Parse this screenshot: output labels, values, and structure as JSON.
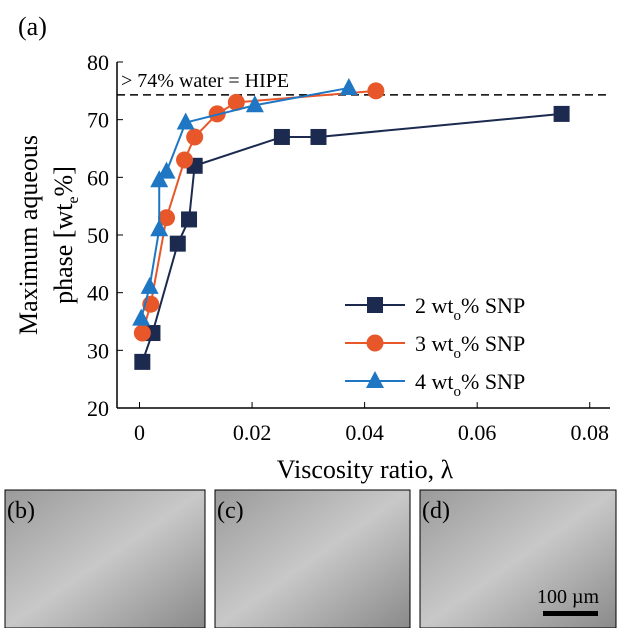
{
  "chart_data": {
    "type": "line",
    "panel_label": "(a)",
    "xlabel": "Viscosity ratio, λ",
    "ylabel": [
      "Maximum aqueous",
      "phase [wt",
      "e",
      "%]"
    ],
    "xlim": [
      -0.004,
      0.0836
    ],
    "ylim": [
      20,
      80
    ],
    "xticks": [
      0,
      0.02,
      0.04,
      0.06,
      0.08
    ],
    "yticks": [
      20,
      30,
      40,
      50,
      60,
      70,
      80
    ],
    "reference_line": {
      "value": 74.3,
      "label": "> 74% water = HIPE"
    },
    "series": [
      {
        "name": [
          "2 wt",
          "o",
          "% SNP"
        ],
        "color": "#1b2a4e",
        "marker": "square",
        "x": [
          0.0005,
          0.0023,
          0.0068,
          0.0088,
          0.0098,
          0.0253,
          0.0318,
          0.075
        ],
        "values": [
          28,
          33,
          48.5,
          52.7,
          62,
          67,
          67,
          71
        ]
      },
      {
        "name": [
          "3 wt",
          "o",
          "% SNP"
        ],
        "color": "#e8572a",
        "marker": "circle",
        "x": [
          0.0005,
          0.002,
          0.0048,
          0.008,
          0.0098,
          0.0138,
          0.0172,
          0.042
        ],
        "values": [
          33,
          38,
          53,
          63,
          67,
          71,
          73,
          75
        ]
      },
      {
        "name": [
          "4 wt",
          "o",
          "% SNP"
        ],
        "color": "#1f77c4",
        "marker": "triangle",
        "x": [
          0.0003,
          0.0018,
          0.0035,
          0.0035,
          0.0048,
          0.0082,
          0.0205,
          0.0372
        ],
        "values": [
          35.5,
          41,
          51,
          59.5,
          61,
          69.5,
          72.5,
          75.5
        ]
      }
    ]
  },
  "micrographs": [
    {
      "label": "(b)"
    },
    {
      "label": "(c)"
    },
    {
      "label": "(d)",
      "scale_bar": "100 µm"
    }
  ]
}
